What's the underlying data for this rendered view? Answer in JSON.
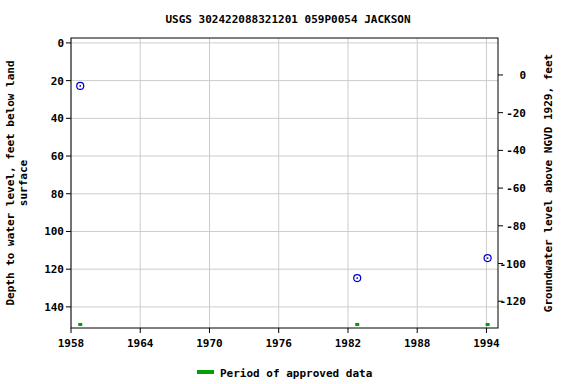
{
  "chart_data": {
    "type": "scatter",
    "title": "USGS 302422088321201 059P0054  JACKSON",
    "y_label": [
      "Depth to water level, feet below land",
      "surface"
    ],
    "y2_label": "Groundwater level above NGVD 1929, feet",
    "x": [
      1958.8,
      1982.8,
      1994.1
    ],
    "series": [
      {
        "values": [
          22.8,
          124.7,
          114.1
        ],
        "color": "#0000cc",
        "marker": "circle"
      }
    ],
    "approved_periods": {
      "name": "Period of approved data",
      "color": "#00a000",
      "x": [
        1958.8,
        1982.8,
        1994.1
      ]
    },
    "xlim": [
      1958,
      1995
    ],
    "xticks": [
      1958,
      1964,
      1970,
      1976,
      1982,
      1988,
      1994
    ],
    "ylim": [
      151.2,
      -2.6
    ],
    "yticks": [
      0,
      20,
      40,
      60,
      80,
      100,
      120,
      140
    ],
    "y2lim": [
      -134.2,
      19.6
    ],
    "y2ticks": [
      -120,
      -100,
      -80,
      -60,
      -40,
      -20,
      0
    ],
    "grid": true,
    "legend": "bottom"
  }
}
